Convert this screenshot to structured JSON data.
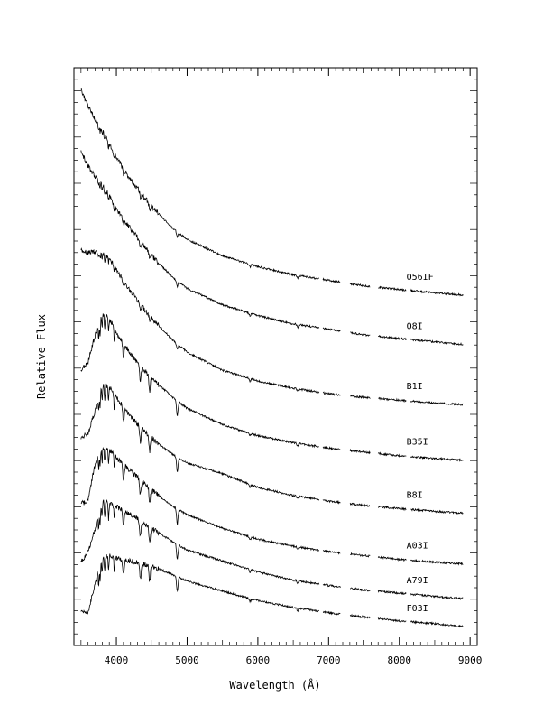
{
  "chart_data": {
    "type": "line",
    "title": "",
    "xlabel": "Wavelength (Å)",
    "ylabel": "Relative Flux",
    "xlim": [
      3400,
      9100
    ],
    "x_ticks": [
      4000,
      5000,
      6000,
      7000,
      8000,
      9000
    ],
    "x_tick_labels": [
      "4000",
      "5000",
      "6000",
      "7000",
      "8000",
      "9000"
    ],
    "y_tick_labels": false,
    "grid": false,
    "legend": "none (series labelled at right end of each spectrum)",
    "series": [
      {
        "name": "O56IF",
        "x": [
          3500,
          3600,
          3700,
          3800,
          3900,
          4000,
          4200,
          4500,
          4800,
          5000,
          5500,
          6000,
          6500,
          7000,
          7500,
          8000,
          8500,
          8900
        ],
        "y": [
          9.6,
          9.3,
          9.05,
          8.85,
          8.6,
          8.35,
          7.95,
          7.45,
          7.05,
          6.85,
          6.55,
          6.35,
          6.2,
          6.1,
          6.0,
          5.93,
          5.87,
          5.83
        ]
      },
      {
        "name": "O8I",
        "x": [
          3500,
          3600,
          3700,
          3800,
          3900,
          4000,
          4200,
          4500,
          4800,
          5000,
          5500,
          6000,
          6500,
          7000,
          7500,
          8000,
          8500,
          8900
        ],
        "y": [
          8.45,
          8.2,
          8.0,
          7.85,
          7.65,
          7.4,
          7.05,
          6.55,
          6.15,
          5.95,
          5.65,
          5.45,
          5.3,
          5.2,
          5.1,
          5.03,
          4.97,
          4.92
        ]
      },
      {
        "name": "B1I",
        "x": [
          3500,
          3600,
          3700,
          3800,
          3900,
          4000,
          4200,
          4500,
          4800,
          5000,
          5500,
          6000,
          6500,
          7000,
          7500,
          8000,
          8500,
          8900
        ],
        "y": [
          6.65,
          6.6,
          6.62,
          6.6,
          6.5,
          6.3,
          5.9,
          5.4,
          5.0,
          4.78,
          4.45,
          4.25,
          4.12,
          4.02,
          3.95,
          3.9,
          3.85,
          3.82
        ]
      },
      {
        "name": "B35I",
        "x": [
          3500,
          3600,
          3700,
          3800,
          3900,
          4000,
          4200,
          4500,
          4800,
          5000,
          5500,
          6000,
          6500,
          7000,
          7500,
          8000,
          8500,
          8900
        ],
        "y": [
          4.45,
          4.6,
          5.1,
          5.5,
          5.4,
          5.15,
          4.75,
          4.3,
          3.95,
          3.75,
          3.45,
          3.25,
          3.12,
          3.02,
          2.95,
          2.88,
          2.83,
          2.8
        ]
      },
      {
        "name": "B8I",
        "x": [
          3500,
          3600,
          3700,
          3800,
          3900,
          4000,
          4200,
          4500,
          4800,
          5000,
          5500,
          6000,
          6500,
          7000,
          7500,
          8000,
          8500,
          8900
        ],
        "y": [
          3.2,
          3.3,
          3.7,
          4.2,
          4.15,
          3.95,
          3.6,
          3.2,
          2.9,
          2.75,
          2.55,
          2.3,
          2.15,
          2.05,
          1.97,
          1.91,
          1.86,
          1.83
        ]
      },
      {
        "name": "A03I",
        "x": [
          3500,
          3600,
          3700,
          3800,
          3900,
          4000,
          4200,
          4500,
          4800,
          5000,
          5500,
          6000,
          6500,
          7000,
          7500,
          8000,
          8500,
          8900
        ],
        "y": [
          2.0,
          2.05,
          2.75,
          3.05,
          3.0,
          2.85,
          2.6,
          2.25,
          1.95,
          1.8,
          1.55,
          1.35,
          1.22,
          1.12,
          1.05,
          0.98,
          0.93,
          0.9
        ]
      },
      {
        "name": "A79I",
        "x": [
          3500,
          3600,
          3700,
          3800,
          3900,
          4000,
          4200,
          4500,
          4800,
          5000,
          5500,
          6000,
          6500,
          7000,
          7500,
          8000,
          8500,
          8900
        ],
        "y": [
          0.95,
          1.1,
          1.55,
          2.05,
          2.0,
          1.95,
          1.8,
          1.55,
          1.3,
          1.15,
          0.95,
          0.75,
          0.6,
          0.5,
          0.42,
          0.36,
          0.3,
          0.26
        ]
      },
      {
        "name": "F03I",
        "x": [
          3500,
          3600,
          3700,
          3800,
          3900,
          4000,
          4200,
          4500,
          4800,
          5000,
          5500,
          6000,
          6500,
          7000,
          7500,
          8000,
          8500,
          8900
        ],
        "y": [
          0.05,
          0.0,
          0.55,
          1.0,
          1.05,
          1.0,
          0.95,
          0.85,
          0.7,
          0.58,
          0.4,
          0.22,
          0.1,
          0.0,
          -0.08,
          -0.15,
          -0.2,
          -0.25
        ]
      }
    ]
  }
}
